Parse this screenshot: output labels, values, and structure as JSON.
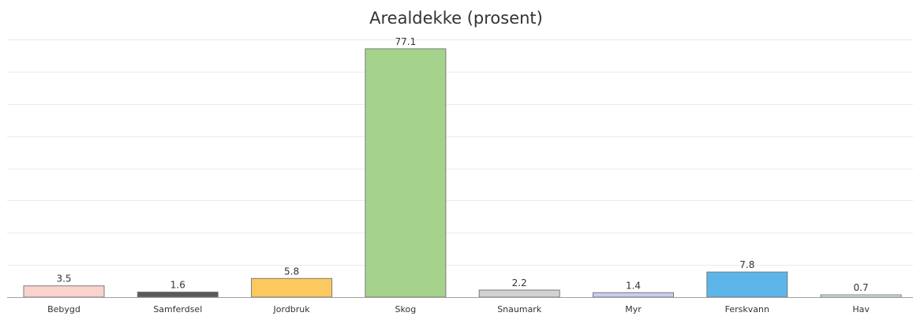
{
  "chart_data": {
    "type": "bar",
    "title": "Arealdekke (prosent)",
    "xlabel": "",
    "ylabel": "",
    "ylim": [
      0,
      80
    ],
    "grid": true,
    "categories": [
      "Bebygd",
      "Samferdsel",
      "Jordbruk",
      "Skog",
      "Snaumark",
      "Myr",
      "Ferskvann",
      "Hav"
    ],
    "values": [
      3.5,
      1.6,
      5.8,
      77.1,
      2.2,
      1.4,
      7.8,
      0.7
    ],
    "value_labels": [
      "3.5",
      "1.6",
      "5.8",
      "77.1",
      "2.2",
      "1.4",
      "7.8",
      "0.7"
    ],
    "colors": [
      "#f9d3cc",
      "#5a5a5a",
      "#fcc95f",
      "#a6d38b",
      "#d2d2d2",
      "#c7cdf0",
      "#5cb6ea",
      "#d6efe1"
    ]
  }
}
